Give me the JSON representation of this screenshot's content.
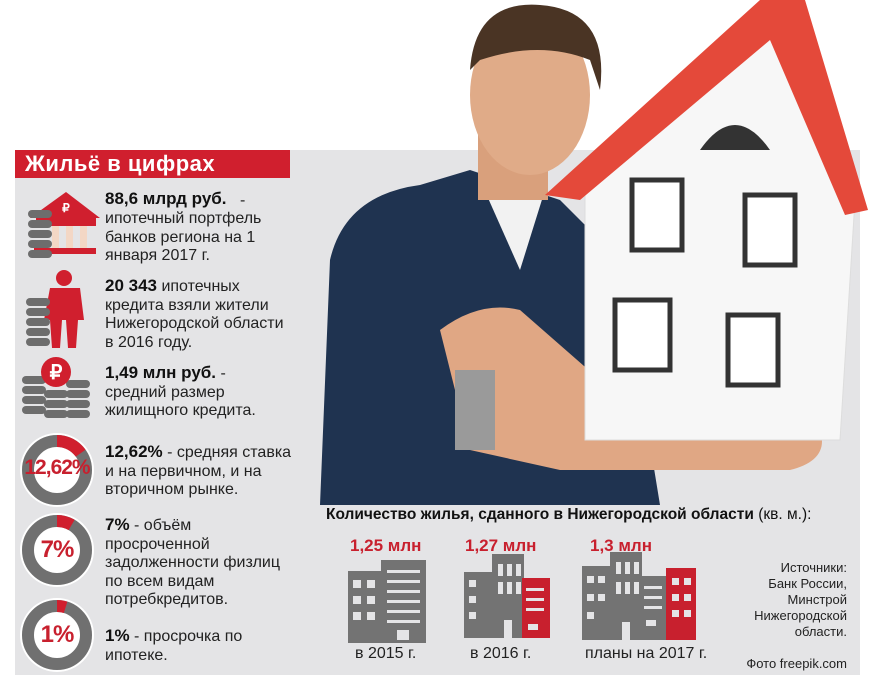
{
  "title": "Жильё в цифрах",
  "facts": [
    {
      "highlight": "88,6 млрд руб.",
      "text": " - ипотечный портфель банков региона на 1 января 2017 г.",
      "icon": "bank-coins-icon"
    },
    {
      "highlight": "20 343",
      "text": " ипотечных кредита взяли жители Нижегородской области в 2016 году.",
      "icon": "person-coins-icon"
    },
    {
      "highlight": "1,49 млн руб.",
      "text": " - средний размер жилищного кредита.",
      "icon": "ruble-coins-icon"
    },
    {
      "highlight": "12,62%",
      "text": " - средняя ставка и на первичном, и на вторичном рынке.",
      "ring_label": "12,62%",
      "percent": 12.62
    },
    {
      "highlight": "7%",
      "text": " - объём просроченной задолженности физлиц по всем видам потребкредитов.",
      "ring_label": "7%",
      "percent": 7
    },
    {
      "highlight": "1%",
      "text": " - просрочка по ипотеке.",
      "ring_label": "1%",
      "percent": 1
    }
  ],
  "housing": {
    "title": "Количество жилья, сданного в Нижегородской области",
    "unit": " (кв. м.):",
    "items": [
      {
        "value": "1,25 млн",
        "year": "в 2015 г."
      },
      {
        "value": "1,27 млн",
        "year": "в 2016 г."
      },
      {
        "value": "1,3 млн",
        "year": "планы на 2017 г."
      }
    ]
  },
  "sources": [
    "Источники:",
    "Банк России,",
    "Минстрой",
    "Нижегородской",
    "области."
  ],
  "photo_credit": "Фото freepik.com",
  "colors": {
    "accent": "#d01f2e",
    "gray": "#707070",
    "panel": "#e4e4e6"
  }
}
